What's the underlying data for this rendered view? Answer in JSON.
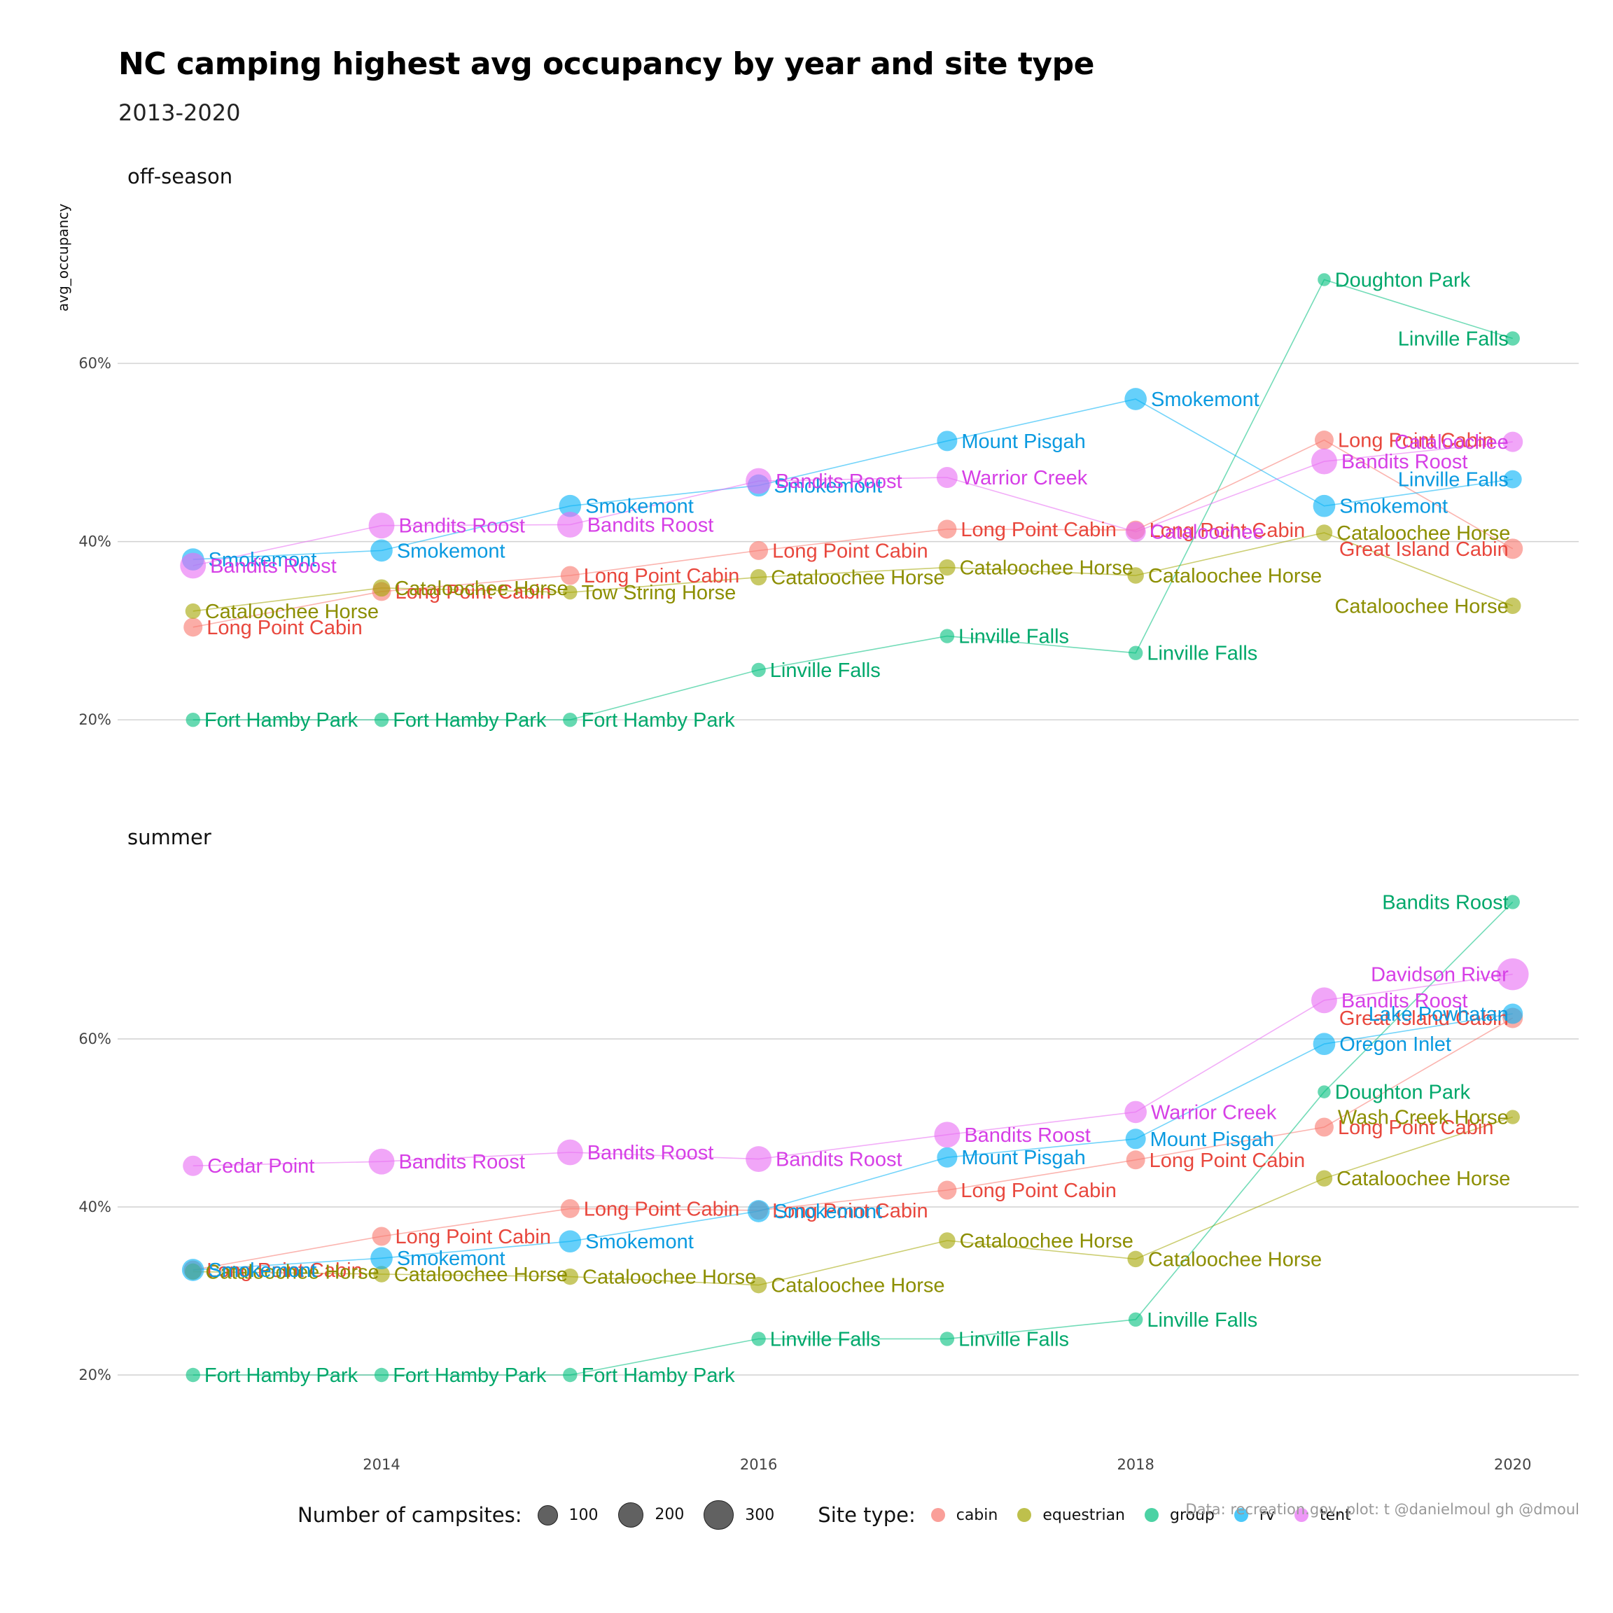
{
  "chart_data": {
    "type": "scatter",
    "title": "NC camping highest avg occupancy by year and site type",
    "subtitle": "2013-2020",
    "ylabel": "avg_occupancy",
    "xlabel": "",
    "x_ticks": [
      "2014",
      "2016",
      "2018",
      "2020"
    ],
    "y_ticks": [
      "20%",
      "40%",
      "60%"
    ],
    "xlim": [
      2012.6,
      2020.35
    ],
    "grid": true,
    "colors": {
      "cabin": "#F8766D",
      "equestrian": "#A3A500",
      "group": "#00BF7D",
      "rv": "#00B0F6",
      "tent": "#E76BF3"
    },
    "label_colors": {
      "cabin": "#E8473D",
      "equestrian": "#8C8E00",
      "group": "#00A86B",
      "rv": "#0A9AE0",
      "tent": "#D63FE6"
    },
    "legend": {
      "size_title": "Number of campsites:",
      "sizes": [
        {
          "label": "100",
          "value": 100
        },
        {
          "label": "200",
          "value": 200
        },
        {
          "label": "300",
          "value": 300
        }
      ],
      "type_title": "Site type:",
      "types": [
        "cabin",
        "equestrian",
        "group",
        "rv",
        "tent"
      ],
      "placement": "bottom"
    },
    "caption": "Data: recreation.gov, plot: t @danielmoul gh @dmoul",
    "panels": [
      {
        "name": "off-season",
        "ylim": [
          0.12,
          0.78
        ],
        "series": [
          {
            "type": "cabin",
            "points": [
              {
                "x": 2013,
                "y": 0.304,
                "n": 80,
                "label": "Long Point Cabin"
              },
              {
                "x": 2014,
                "y": 0.344,
                "n": 80,
                "label": "Long Point Cabin"
              },
              {
                "x": 2015,
                "y": 0.362,
                "n": 80,
                "label": "Long Point Cabin"
              },
              {
                "x": 2016,
                "y": 0.39,
                "n": 80,
                "label": "Long Point Cabin"
              },
              {
                "x": 2017,
                "y": 0.414,
                "n": 80,
                "label": "Long Point Cabin"
              },
              {
                "x": 2018,
                "y": 0.413,
                "n": 80,
                "label": "Long Point Cabin"
              },
              {
                "x": 2019,
                "y": 0.514,
                "n": 80,
                "label": "Long Point Cabin"
              },
              {
                "x": 2020,
                "y": 0.392,
                "n": 100,
                "label": "Great Island Cabin"
              }
            ]
          },
          {
            "type": "equestrian",
            "points": [
              {
                "x": 2013,
                "y": 0.322,
                "n": 40,
                "label": "Cataloochee Horse"
              },
              {
                "x": 2014,
                "y": 0.348,
                "n": 60,
                "label": "Cataloochee Horse"
              },
              {
                "x": 2015,
                "y": 0.343,
                "n": 30,
                "label": "Tow String Horse"
              },
              {
                "x": 2016,
                "y": 0.36,
                "n": 50,
                "label": "Cataloochee Horse"
              },
              {
                "x": 2017,
                "y": 0.371,
                "n": 50,
                "label": "Cataloochee Horse"
              },
              {
                "x": 2018,
                "y": 0.362,
                "n": 50,
                "label": "Cataloochee Horse"
              },
              {
                "x": 2019,
                "y": 0.41,
                "n": 50,
                "label": "Cataloochee Horse"
              },
              {
                "x": 2020,
                "y": 0.328,
                "n": 50,
                "label": "Cataloochee Horse"
              }
            ]
          },
          {
            "type": "group",
            "points": [
              {
                "x": 2013,
                "y": 0.2,
                "n": 30,
                "label": "Fort Hamby Park"
              },
              {
                "x": 2014,
                "y": 0.2,
                "n": 30,
                "label": "Fort Hamby Park"
              },
              {
                "x": 2015,
                "y": 0.2,
                "n": 30,
                "label": "Fort Hamby Park"
              },
              {
                "x": 2016,
                "y": 0.256,
                "n": 30,
                "label": "Linville Falls"
              },
              {
                "x": 2017,
                "y": 0.294,
                "n": 30,
                "label": "Linville Falls"
              },
              {
                "x": 2018,
                "y": 0.275,
                "n": 30,
                "label": "Linville Falls"
              },
              {
                "x": 2019,
                "y": 0.694,
                "n": 20,
                "label": "Doughton Park"
              },
              {
                "x": 2020,
                "y": 0.628,
                "n": 30,
                "label": "Linville Falls"
              }
            ]
          },
          {
            "type": "rv",
            "points": [
              {
                "x": 2013,
                "y": 0.38,
                "n": 130,
                "label": "Smokemont"
              },
              {
                "x": 2014,
                "y": 0.39,
                "n": 130,
                "label": "Smokemont"
              },
              {
                "x": 2015,
                "y": 0.44,
                "n": 130,
                "label": "Smokemont"
              },
              {
                "x": 2016,
                "y": 0.463,
                "n": 130,
                "label": "Smokemont"
              },
              {
                "x": 2017,
                "y": 0.513,
                "n": 100,
                "label": "Mount Pisgah"
              },
              {
                "x": 2018,
                "y": 0.56,
                "n": 130,
                "label": "Smokemont"
              },
              {
                "x": 2019,
                "y": 0.44,
                "n": 130,
                "label": "Smokemont"
              },
              {
                "x": 2020,
                "y": 0.47,
                "n": 70,
                "label": "Linville Falls"
              }
            ]
          },
          {
            "type": "tent",
            "points": [
              {
                "x": 2013,
                "y": 0.373,
                "n": 200,
                "label": "Bandits Roost"
              },
              {
                "x": 2014,
                "y": 0.418,
                "n": 200,
                "label": "Bandits Roost"
              },
              {
                "x": 2015,
                "y": 0.419,
                "n": 200,
                "label": "Bandits Roost"
              },
              {
                "x": 2016,
                "y": 0.468,
                "n": 200,
                "label": "Bandits Roost"
              },
              {
                "x": 2017,
                "y": 0.472,
                "n": 110,
                "label": "Warrior Creek"
              },
              {
                "x": 2018,
                "y": 0.411,
                "n": 100,
                "label": "Cataloochee"
              },
              {
                "x": 2019,
                "y": 0.49,
                "n": 200,
                "label": "Bandits Roost"
              },
              {
                "x": 2020,
                "y": 0.512,
                "n": 100,
                "label": "Cataloochee"
              }
            ]
          }
        ]
      },
      {
        "name": "summer",
        "ylim": [
          0.12,
          0.81
        ],
        "series": [
          {
            "type": "cabin",
            "points": [
              {
                "x": 2013,
                "y": 0.325,
                "n": 80,
                "label": "Long Point Cabin"
              },
              {
                "x": 2014,
                "y": 0.365,
                "n": 80,
                "label": "Long Point Cabin"
              },
              {
                "x": 2015,
                "y": 0.398,
                "n": 80,
                "label": "Long Point Cabin"
              },
              {
                "x": 2016,
                "y": 0.396,
                "n": 80,
                "label": "Long Point Cabin"
              },
              {
                "x": 2017,
                "y": 0.42,
                "n": 80,
                "label": "Long Point Cabin"
              },
              {
                "x": 2018,
                "y": 0.456,
                "n": 80,
                "label": "Long Point Cabin"
              },
              {
                "x": 2019,
                "y": 0.495,
                "n": 80,
                "label": "Long Point Cabin"
              },
              {
                "x": 2020,
                "y": 0.625,
                "n": 100,
                "label": "Great Island Cabin"
              }
            ]
          },
          {
            "type": "equestrian",
            "points": [
              {
                "x": 2013,
                "y": 0.323,
                "n": 50,
                "label": "Cataloochee Horse"
              },
              {
                "x": 2014,
                "y": 0.32,
                "n": 50,
                "label": "Cataloochee Horse"
              },
              {
                "x": 2015,
                "y": 0.317,
                "n": 50,
                "label": "Cataloochee Horse"
              },
              {
                "x": 2016,
                "y": 0.307,
                "n": 50,
                "label": "Cataloochee Horse"
              },
              {
                "x": 2017,
                "y": 0.36,
                "n": 50,
                "label": "Cataloochee Horse"
              },
              {
                "x": 2018,
                "y": 0.338,
                "n": 50,
                "label": "Cataloochee Horse"
              },
              {
                "x": 2019,
                "y": 0.434,
                "n": 50,
                "label": "Cataloochee Horse"
              },
              {
                "x": 2020,
                "y": 0.507,
                "n": 30,
                "label": "Wash Creek Horse"
              }
            ]
          },
          {
            "type": "group",
            "points": [
              {
                "x": 2013,
                "y": 0.2,
                "n": 30,
                "label": "Fort Hamby Park"
              },
              {
                "x": 2014,
                "y": 0.2,
                "n": 30,
                "label": "Fort Hamby Park"
              },
              {
                "x": 2015,
                "y": 0.2,
                "n": 30,
                "label": "Fort Hamby Park"
              },
              {
                "x": 2016,
                "y": 0.243,
                "n": 30,
                "label": "Linville Falls"
              },
              {
                "x": 2017,
                "y": 0.243,
                "n": 30,
                "label": "Linville Falls"
              },
              {
                "x": 2018,
                "y": 0.266,
                "n": 30,
                "label": "Linville Falls"
              },
              {
                "x": 2019,
                "y": 0.537,
                "n": 20,
                "label": "Doughton Park"
              },
              {
                "x": 2020,
                "y": 0.763,
                "n": 30,
                "label": "Bandits Roost"
              }
            ]
          },
          {
            "type": "rv",
            "points": [
              {
                "x": 2013,
                "y": 0.325,
                "n": 130,
                "label": "Smokemont"
              },
              {
                "x": 2014,
                "y": 0.339,
                "n": 130,
                "label": "Smokemont"
              },
              {
                "x": 2015,
                "y": 0.359,
                "n": 130,
                "label": "Smokemont"
              },
              {
                "x": 2016,
                "y": 0.395,
                "n": 130,
                "label": "Smokemont"
              },
              {
                "x": 2017,
                "y": 0.459,
                "n": 100,
                "label": "Mount Pisgah"
              },
              {
                "x": 2018,
                "y": 0.481,
                "n": 100,
                "label": "Mount Pisgah"
              },
              {
                "x": 2019,
                "y": 0.594,
                "n": 130,
                "label": "Oregon Inlet"
              },
              {
                "x": 2020,
                "y": 0.63,
                "n": 100,
                "label": "Lake Powhatan"
              }
            ]
          },
          {
            "type": "tent",
            "points": [
              {
                "x": 2013,
                "y": 0.449,
                "n": 100,
                "label": "Cedar Point"
              },
              {
                "x": 2014,
                "y": 0.454,
                "n": 200,
                "label": "Bandits Roost"
              },
              {
                "x": 2015,
                "y": 0.465,
                "n": 200,
                "label": "Bandits Roost"
              },
              {
                "x": 2016,
                "y": 0.457,
                "n": 200,
                "label": "Bandits Roost"
              },
              {
                "x": 2017,
                "y": 0.486,
                "n": 200,
                "label": "Bandits Roost"
              },
              {
                "x": 2018,
                "y": 0.513,
                "n": 130,
                "label": "Warrior Creek"
              },
              {
                "x": 2019,
                "y": 0.646,
                "n": 200,
                "label": "Bandits Roost"
              },
              {
                "x": 2020,
                "y": 0.677,
                "n": 350,
                "label": "Davidson River"
              }
            ]
          }
        ]
      }
    ]
  }
}
